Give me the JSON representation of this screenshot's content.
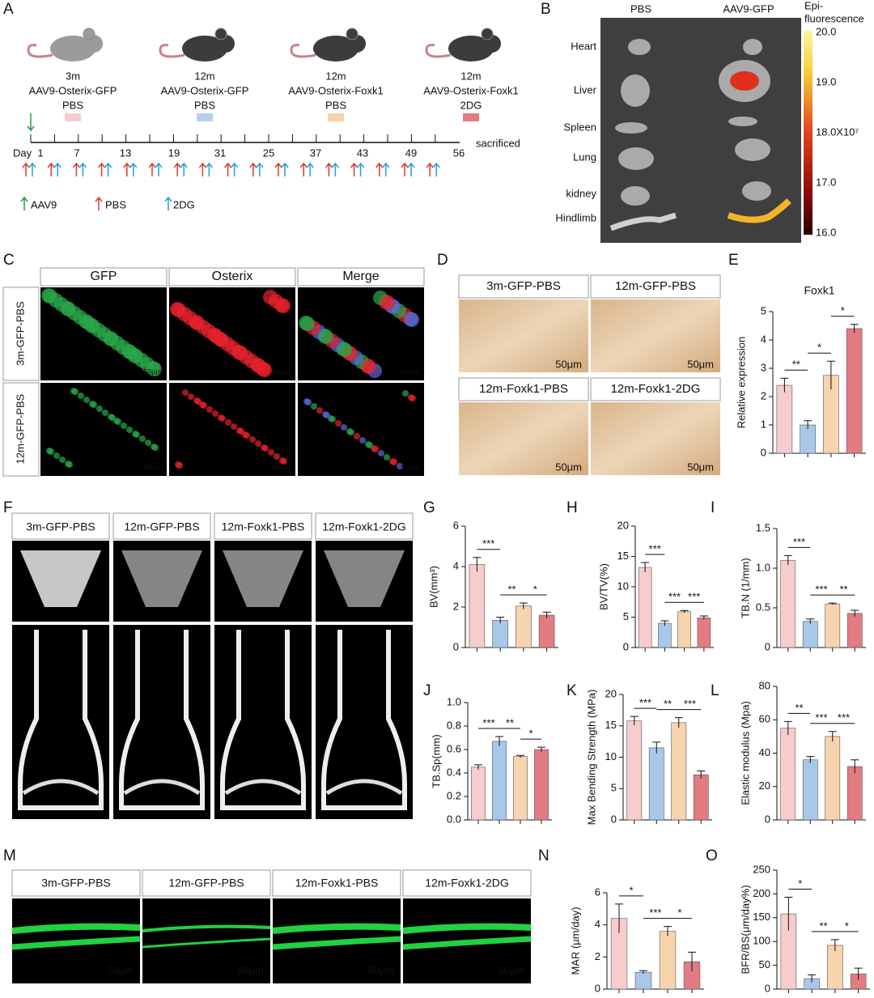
{
  "panel_labels": [
    "A",
    "B",
    "C",
    "D",
    "E",
    "F",
    "G",
    "H",
    "I",
    "J",
    "K",
    "L",
    "M",
    "N",
    "O"
  ],
  "timeline": {
    "groups": [
      {
        "age": "3m",
        "vector": "AAV9-Osterix-GFP",
        "treatment": "PBS"
      },
      {
        "age": "12m",
        "vector": "AAV9-Osterix-GFP",
        "treatment": "PBS"
      },
      {
        "age": "12m",
        "vector": "AAV9-Osterix-Foxk1",
        "treatment": "PBS"
      },
      {
        "age": "12m",
        "vector": "AAV9-Osterix-Foxk1",
        "treatment": "2DG"
      }
    ],
    "day_label": "Day",
    "days": [
      "1",
      "7",
      "13",
      "19",
      "31",
      "25",
      "37",
      "43",
      "49",
      "56"
    ],
    "end_label": "sacrificed",
    "legend": [
      "AAV9",
      "PBS",
      "2DG"
    ]
  },
  "imaging": {
    "columns": [
      "PBS",
      "AAV9-GFP"
    ],
    "organs": [
      "Heart",
      "Liver",
      "Spleen",
      "Lung",
      "kidney",
      "Hindlimb"
    ],
    "colorbar_title": [
      "Epi-",
      "fluorescence"
    ],
    "colorbar_labels": [
      "20.0",
      "19.0",
      "18.0X10⁷",
      "17.0",
      "16.0"
    ]
  },
  "staining": {
    "columns": [
      "GFP",
      "Osterix",
      "Merge"
    ],
    "rows": [
      "3m-GFP-PBS",
      "12m-GFP-PBS"
    ],
    "scale": "50μm"
  },
  "ihc": {
    "labels": [
      "3m-GFP-PBS",
      "12m-GFP-PBS",
      "12m-Foxk1-PBS",
      "12m-Foxk1-2DG"
    ],
    "scale": "50μm"
  },
  "microct": {
    "labels": [
      "3m-GFP-PBS",
      "12m-GFP-PBS",
      "12m-Foxk1-PBS",
      "12m-Foxk1-2DG"
    ]
  },
  "calcein": {
    "labels": [
      "3m-GFP-PBS",
      "12m-GFP-PBS",
      "12m-Foxk1-PBS",
      "12m-Foxk1-2DG"
    ],
    "scale": "50μm"
  },
  "chart_data": [
    {
      "type": "bar",
      "title": "Foxk1",
      "y_label": "Relative expression",
      "values": [
        2.4,
        1.0,
        2.75,
        4.4
      ],
      "errors": [
        0.25,
        0.15,
        0.5,
        0.15
      ],
      "colors": [
        "#f6cccc",
        "#a8c8ea",
        "#f7d3ae",
        "#e27c82"
      ],
      "ylim": [
        0,
        5
      ],
      "yticks": [
        0,
        1,
        2,
        3,
        4,
        5
      ],
      "significance": [
        "**",
        "*",
        "*"
      ]
    },
    {
      "type": "bar",
      "y_label": "BV(mm³)",
      "values": [
        4.1,
        1.35,
        2.05,
        1.6
      ],
      "errors": [
        0.35,
        0.15,
        0.15,
        0.15
      ],
      "colors": [
        "#f6cccc",
        "#a8c8ea",
        "#f7d3ae",
        "#e27c82"
      ],
      "ylim": [
        0,
        6
      ],
      "yticks": [
        0,
        2,
        4,
        6
      ],
      "significance": [
        "***",
        "**",
        "*"
      ]
    },
    {
      "type": "bar",
      "y_label": "BV/TV(%)",
      "values": [
        13.2,
        4.0,
        5.9,
        4.9
      ],
      "errors": [
        0.8,
        0.4,
        0.2,
        0.3
      ],
      "colors": [
        "#f6cccc",
        "#a8c8ea",
        "#f7d3ae",
        "#e27c82"
      ],
      "ylim": [
        0,
        20
      ],
      "yticks": [
        0,
        5,
        10,
        15,
        20
      ],
      "significance": [
        "***",
        "***",
        "***"
      ]
    },
    {
      "type": "bar",
      "y_label": "TB.N (1/mm)",
      "values": [
        1.1,
        0.33,
        0.55,
        0.43
      ],
      "errors": [
        0.06,
        0.03,
        0.01,
        0.04
      ],
      "colors": [
        "#f6cccc",
        "#a8c8ea",
        "#f7d3ae",
        "#e27c82"
      ],
      "ylim": [
        0,
        1.5
      ],
      "yticks": [
        0,
        0.5,
        {
          "value": 1,
          "label": "1.0"
        },
        1.5
      ],
      "significance": [
        "***",
        "***",
        "**"
      ]
    },
    {
      "type": "bar",
      "y_label": "TB.Sp(mm)",
      "values": [
        0.45,
        0.67,
        0.54,
        0.6
      ],
      "errors": [
        0.02,
        0.04,
        0.01,
        0.02
      ],
      "colors": [
        "#f6cccc",
        "#a8c8ea",
        "#f7d3ae",
        "#e27c82"
      ],
      "ylim": [
        0,
        1
      ],
      "yticks": [
        {
          "value": 0,
          "label": "0.0"
        },
        0.2,
        0.4,
        0.6,
        0.8,
        {
          "value": 1,
          "label": "1.0"
        }
      ],
      "significance": [
        "***",
        "**",
        "*"
      ]
    },
    {
      "type": "bar",
      "y_label": "Max Bending Strength (MPa)",
      "values": [
        15.8,
        11.5,
        15.5,
        7.2
      ],
      "errors": [
        0.7,
        0.9,
        0.8,
        0.6
      ],
      "colors": [
        "#f6cccc",
        "#a8c8ea",
        "#f7d3ae",
        "#e27c82"
      ],
      "ylim": [
        0,
        20
      ],
      "yticks": [
        0,
        5,
        10,
        15,
        20
      ],
      "significance": [
        "***",
        "**",
        "***"
      ]
    },
    {
      "type": "bar",
      "y_label": "Elastic modulus (Mpa)",
      "values": [
        55,
        36,
        50,
        32
      ],
      "errors": [
        4,
        2,
        3,
        4
      ],
      "colors": [
        "#f6cccc",
        "#a8c8ea",
        "#f7d3ae",
        "#e27c82"
      ],
      "ylim": [
        0,
        80
      ],
      "yticks": [
        0,
        20,
        40,
        60,
        80
      ],
      "significance": [
        "**",
        "***",
        "***"
      ]
    },
    {
      "type": "bar",
      "y_label": "MAR (μm/day)",
      "values": [
        4.4,
        1.05,
        3.6,
        1.7
      ],
      "errors": [
        0.9,
        0.1,
        0.3,
        0.6
      ],
      "colors": [
        "#f6cccc",
        "#a8c8ea",
        "#f7d3ae",
        "#e27c82"
      ],
      "ylim": [
        0,
        6
      ],
      "yticks": [
        0,
        2,
        4,
        6
      ],
      "significance": [
        "*",
        "***",
        "*"
      ]
    },
    {
      "type": "bar",
      "y_label": "BFR/BS(μm/day%)",
      "values": [
        158,
        22,
        92,
        32
      ],
      "errors": [
        35,
        8,
        12,
        12
      ],
      "colors": [
        "#f6cccc",
        "#a8c8ea",
        "#f7d3ae",
        "#e27c82"
      ],
      "ylim": [
        0,
        250
      ],
      "yticks": [
        0,
        50,
        100,
        150,
        200,
        250
      ],
      "significance": [
        "*",
        "**",
        "*"
      ]
    }
  ]
}
